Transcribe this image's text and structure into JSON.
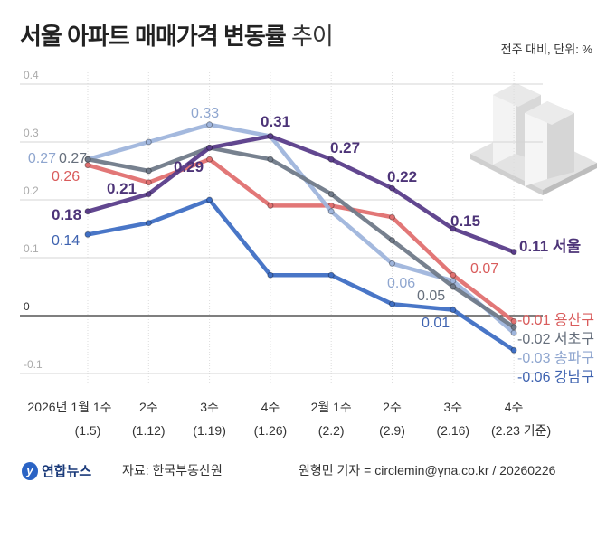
{
  "header": {
    "title_bold": "서울 아파트 매매가격 변동률",
    "title_light": " 추이",
    "unit_note": "전주 대비, 단위: %"
  },
  "chart_data": {
    "type": "line",
    "title": "서울 아파트 매매가격 변동률 추이",
    "ylabel": "",
    "xlabel": "",
    "ylim": [
      -0.1,
      0.4
    ],
    "yticks": [
      "0.4",
      "0.3",
      "0.2",
      "0.1",
      "0",
      "-0.1"
    ],
    "ytick_values": [
      0.4,
      0.3,
      0.2,
      0.1,
      0,
      -0.1
    ],
    "grid": true,
    "categories": [
      "2026년 1월 1주",
      "2주",
      "3주",
      "4주",
      "2월 1주",
      "2주",
      "3주",
      "4주"
    ],
    "category_dates": [
      "(1.5)",
      "(1.12)",
      "(1.19)",
      "(1.26)",
      "(2.2)",
      "(2.9)",
      "(2.16)",
      "(2.23 기준)"
    ],
    "series": [
      {
        "name": "강남구",
        "color": "#3f6fc4",
        "label_color": "#3f63b0",
        "values": [
          0.14,
          0.16,
          0.2,
          0.07,
          0.07,
          0.02,
          0.01,
          -0.06
        ],
        "labeled": [
          0,
          6,
          7
        ]
      },
      {
        "name": "용산구",
        "color": "#e07070",
        "label_color": "#d95c5c",
        "values": [
          0.26,
          0.23,
          0.27,
          0.19,
          0.19,
          0.17,
          0.07,
          -0.01
        ],
        "labeled": [
          0,
          6,
          7
        ]
      },
      {
        "name": "송파구",
        "color": "#9fb5dc",
        "label_color": "#8fa6cf",
        "values": [
          0.27,
          0.3,
          0.33,
          0.31,
          0.18,
          0.09,
          0.06,
          -0.03
        ],
        "labeled": [
          0,
          2,
          6,
          7
        ]
      },
      {
        "name": "서초구",
        "color": "#707a89",
        "label_color": "#666f7c",
        "values": [
          0.27,
          0.25,
          0.29,
          0.27,
          0.21,
          0.13,
          0.05,
          -0.02
        ],
        "labeled": [
          0,
          6,
          7
        ]
      },
      {
        "name": "서울",
        "color": "#5a3d8a",
        "label_color": "#4d3478",
        "values": [
          0.18,
          0.21,
          0.29,
          0.31,
          0.27,
          0.22,
          0.15,
          0.11
        ],
        "labeled": [
          0,
          1,
          2,
          3,
          4,
          5,
          6,
          7
        ]
      }
    ],
    "legend": "inline-right"
  },
  "footer": {
    "logo_text": "연합뉴스",
    "source": "자료: 한국부동산원",
    "credit": "원형민 기자 = circlemin@yna.co.kr / 20260226"
  }
}
